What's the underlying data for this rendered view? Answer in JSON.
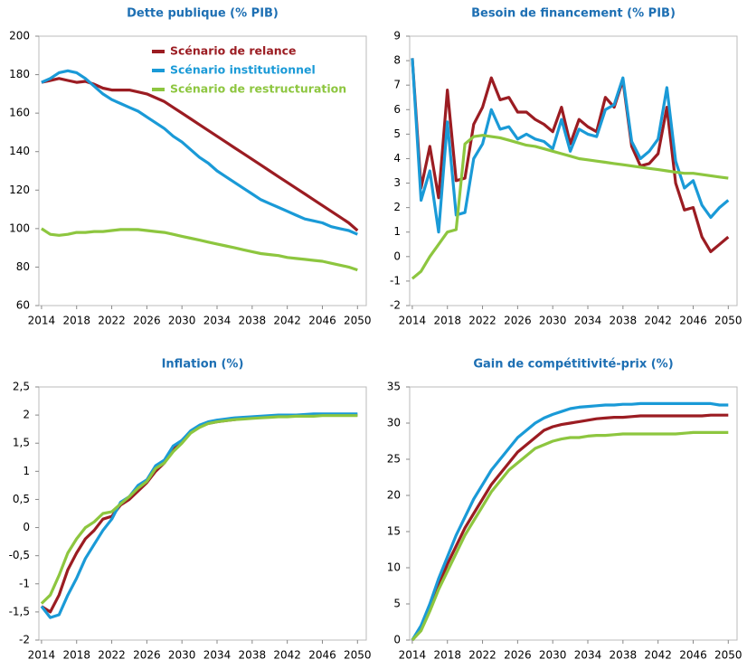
{
  "chart_data": [
    {
      "type": "line",
      "title": "Dette publique (% PIB)",
      "x": [
        2014,
        2015,
        2016,
        2017,
        2018,
        2019,
        2020,
        2021,
        2022,
        2023,
        2024,
        2025,
        2026,
        2027,
        2028,
        2029,
        2030,
        2031,
        2032,
        2033,
        2034,
        2035,
        2036,
        2037,
        2038,
        2039,
        2040,
        2041,
        2042,
        2043,
        2044,
        2045,
        2046,
        2047,
        2048,
        2049,
        2050
      ],
      "xlim": [
        2013.7,
        2051
      ],
      "xticks": [
        2014,
        2018,
        2022,
        2026,
        2030,
        2034,
        2038,
        2042,
        2046,
        2050
      ],
      "ylim": [
        60,
        200
      ],
      "yticks": [
        60,
        80,
        100,
        120,
        140,
        160,
        180,
        200
      ],
      "legend": "upper right",
      "series": [
        {
          "name": "Scénario de relance",
          "color": "#9b1c22",
          "values": [
            176,
            177,
            178,
            177,
            176,
            176.5,
            175,
            173,
            172,
            172,
            172,
            171,
            170,
            168,
            166,
            163,
            160,
            157,
            154,
            151,
            148,
            145,
            142,
            139,
            136,
            133,
            130,
            127,
            124,
            121,
            118,
            115,
            112,
            109,
            106,
            103,
            99
          ]
        },
        {
          "name": "Scénario institutionnel",
          "color": "#1a9ad7",
          "values": [
            176,
            178,
            181,
            182,
            181,
            178,
            174,
            170,
            167,
            165,
            163,
            161,
            158,
            155,
            152,
            148,
            145,
            141,
            137,
            134,
            130,
            127,
            124,
            121,
            118,
            115,
            113,
            111,
            109,
            107,
            105,
            104,
            103,
            101,
            100,
            99,
            97
          ]
        },
        {
          "name": "Scénario de restructuration",
          "color": "#8dc63f",
          "values": [
            100,
            97,
            96.5,
            97,
            98,
            98,
            98.5,
            98.5,
            99,
            99.5,
            99.5,
            99.5,
            99,
            98.5,
            98,
            97,
            96,
            95,
            94,
            93,
            92,
            91,
            90,
            89,
            88,
            87,
            86.5,
            86,
            85,
            84.5,
            84,
            83.5,
            83,
            82,
            81,
            80,
            78.5
          ]
        }
      ]
    },
    {
      "type": "line",
      "title": "Besoin de financement (% PIB)",
      "x": [
        2014,
        2015,
        2016,
        2017,
        2018,
        2019,
        2020,
        2021,
        2022,
        2023,
        2024,
        2025,
        2026,
        2027,
        2028,
        2029,
        2030,
        2031,
        2032,
        2033,
        2034,
        2035,
        2036,
        2037,
        2038,
        2039,
        2040,
        2041,
        2042,
        2043,
        2044,
        2045,
        2046,
        2047,
        2048,
        2049,
        2050
      ],
      "xlim": [
        2013.7,
        2051
      ],
      "xticks": [
        2014,
        2018,
        2022,
        2026,
        2030,
        2034,
        2038,
        2042,
        2046,
        2050
      ],
      "ylim": [
        -2,
        9
      ],
      "yticks": [
        -2,
        -1,
        0,
        1,
        2,
        3,
        4,
        5,
        6,
        7,
        8,
        9
      ],
      "series": [
        {
          "color": "#9b1c22",
          "values": [
            8.1,
            2.8,
            4.5,
            2.4,
            6.8,
            3.1,
            3.2,
            5.4,
            6.1,
            7.3,
            6.4,
            6.5,
            5.9,
            5.9,
            5.6,
            5.4,
            5.1,
            6.1,
            4.6,
            5.6,
            5.3,
            5.1,
            6.5,
            6.1,
            7.2,
            4.5,
            3.7,
            3.8,
            4.2,
            6.1,
            3.0,
            1.9,
            2.0,
            0.8,
            0.2,
            0.5,
            0.8
          ]
        },
        {
          "color": "#1a9ad7",
          "values": [
            8.1,
            2.3,
            3.5,
            1.0,
            5.5,
            1.7,
            1.8,
            4.0,
            4.6,
            6.0,
            5.2,
            5.3,
            4.8,
            5.0,
            4.8,
            4.7,
            4.4,
            5.6,
            4.3,
            5.2,
            5.0,
            4.9,
            6.0,
            6.2,
            7.3,
            4.7,
            4.0,
            4.3,
            4.8,
            6.9,
            3.9,
            2.8,
            3.1,
            2.1,
            1.6,
            2.0,
            2.3
          ]
        },
        {
          "color": "#8dc63f",
          "values": [
            -0.9,
            -0.6,
            0,
            0.5,
            1.0,
            1.1,
            4.6,
            4.9,
            4.95,
            4.9,
            4.85,
            4.75,
            4.65,
            4.55,
            4.5,
            4.4,
            4.3,
            4.2,
            4.1,
            4.0,
            3.95,
            3.9,
            3.85,
            3.8,
            3.75,
            3.7,
            3.65,
            3.6,
            3.55,
            3.5,
            3.45,
            3.4,
            3.4,
            3.35,
            3.3,
            3.25,
            3.2
          ]
        }
      ]
    },
    {
      "type": "line",
      "title": "Inflation (%)",
      "x": [
        2014,
        2015,
        2016,
        2017,
        2018,
        2019,
        2020,
        2021,
        2022,
        2023,
        2024,
        2025,
        2026,
        2027,
        2028,
        2029,
        2030,
        2031,
        2032,
        2033,
        2034,
        2035,
        2036,
        2037,
        2038,
        2039,
        2040,
        2041,
        2042,
        2043,
        2044,
        2045,
        2046,
        2047,
        2048,
        2049,
        2050
      ],
      "xlim": [
        2013.7,
        2051
      ],
      "xticks": [
        2014,
        2018,
        2022,
        2026,
        2030,
        2034,
        2038,
        2042,
        2046,
        2050
      ],
      "ylim": [
        -2,
        2.5
      ],
      "yticks": [
        -2,
        {
          "value": -1.5,
          "label": "-1,5"
        },
        -1,
        {
          "value": -0.5,
          "label": "-0,5"
        },
        0,
        {
          "value": 0.5,
          "label": "0,5"
        },
        1,
        {
          "value": 1.5,
          "label": "1,5"
        },
        2,
        {
          "value": 2.5,
          "label": "2,5"
        }
      ],
      "series": [
        {
          "color": "#9b1c22",
          "values": [
            -1.4,
            -1.5,
            -1.2,
            -0.75,
            -0.45,
            -0.2,
            -0.05,
            0.15,
            0.2,
            0.4,
            0.5,
            0.65,
            0.8,
            1.0,
            1.15,
            1.4,
            1.55,
            1.7,
            1.8,
            1.85,
            1.88,
            1.9,
            1.92,
            1.94,
            1.95,
            1.96,
            1.97,
            1.98,
            1.98,
            1.98,
            1.99,
            1.99,
            2.0,
            2.0,
            2.0,
            2.0,
            2.0
          ]
        },
        {
          "color": "#1a9ad7",
          "values": [
            -1.4,
            -1.6,
            -1.55,
            -1.2,
            -0.9,
            -0.55,
            -0.3,
            -0.05,
            0.15,
            0.45,
            0.55,
            0.75,
            0.85,
            1.1,
            1.2,
            1.45,
            1.55,
            1.72,
            1.82,
            1.88,
            1.91,
            1.93,
            1.95,
            1.96,
            1.97,
            1.98,
            1.99,
            2.0,
            2.0,
            2.0,
            2.01,
            2.02,
            2.02,
            2.02,
            2.02,
            2.02,
            2.02
          ]
        },
        {
          "color": "#8dc63f",
          "values": [
            -1.35,
            -1.2,
            -0.85,
            -0.45,
            -0.2,
            0,
            0.1,
            0.25,
            0.28,
            0.42,
            0.55,
            0.7,
            0.82,
            1.05,
            1.15,
            1.35,
            1.5,
            1.68,
            1.78,
            1.85,
            1.88,
            1.9,
            1.92,
            1.93,
            1.94,
            1.95,
            1.96,
            1.97,
            1.97,
            1.98,
            1.98,
            1.98,
            1.99,
            1.99,
            1.99,
            1.99,
            1.99
          ]
        }
      ]
    },
    {
      "type": "line",
      "title": "Gain de compétitivité-prix (%)",
      "x": [
        2014,
        2015,
        2016,
        2017,
        2018,
        2019,
        2020,
        2021,
        2022,
        2023,
        2024,
        2025,
        2026,
        2027,
        2028,
        2029,
        2030,
        2031,
        2032,
        2033,
        2034,
        2035,
        2036,
        2037,
        2038,
        2039,
        2040,
        2041,
        2042,
        2043,
        2044,
        2045,
        2046,
        2047,
        2048,
        2049,
        2050
      ],
      "xlim": [
        2013.7,
        2051
      ],
      "xticks": [
        2014,
        2018,
        2022,
        2026,
        2030,
        2034,
        2038,
        2042,
        2046,
        2050
      ],
      "ylim": [
        0,
        35
      ],
      "yticks": [
        0,
        5,
        10,
        15,
        20,
        25,
        30,
        35
      ],
      "series": [
        {
          "color": "#9b1c22",
          "values": [
            0,
            1.5,
            4.5,
            7.5,
            10.5,
            13,
            15.5,
            17.5,
            19.5,
            21.5,
            23,
            24.5,
            26,
            27,
            28,
            29,
            29.5,
            29.8,
            30,
            30.2,
            30.4,
            30.6,
            30.7,
            30.8,
            30.8,
            30.9,
            31,
            31,
            31,
            31,
            31,
            31,
            31,
            31,
            31.1,
            31.1,
            31.1
          ]
        },
        {
          "color": "#1a9ad7",
          "values": [
            0,
            2,
            5,
            8.5,
            11.5,
            14.5,
            17,
            19.5,
            21.5,
            23.5,
            25,
            26.5,
            28,
            29,
            30,
            30.7,
            31.2,
            31.6,
            32,
            32.2,
            32.3,
            32.4,
            32.5,
            32.5,
            32.6,
            32.6,
            32.7,
            32.7,
            32.7,
            32.7,
            32.7,
            32.7,
            32.7,
            32.7,
            32.7,
            32.5,
            32.5
          ]
        },
        {
          "color": "#8dc63f",
          "values": [
            0,
            1.3,
            4,
            7,
            9.5,
            12,
            14.5,
            16.5,
            18.5,
            20.5,
            22,
            23.5,
            24.5,
            25.5,
            26.5,
            27,
            27.5,
            27.8,
            28,
            28,
            28.2,
            28.3,
            28.3,
            28.4,
            28.5,
            28.5,
            28.5,
            28.5,
            28.5,
            28.5,
            28.5,
            28.6,
            28.7,
            28.7,
            28.7,
            28.7,
            28.7
          ]
        }
      ]
    }
  ]
}
